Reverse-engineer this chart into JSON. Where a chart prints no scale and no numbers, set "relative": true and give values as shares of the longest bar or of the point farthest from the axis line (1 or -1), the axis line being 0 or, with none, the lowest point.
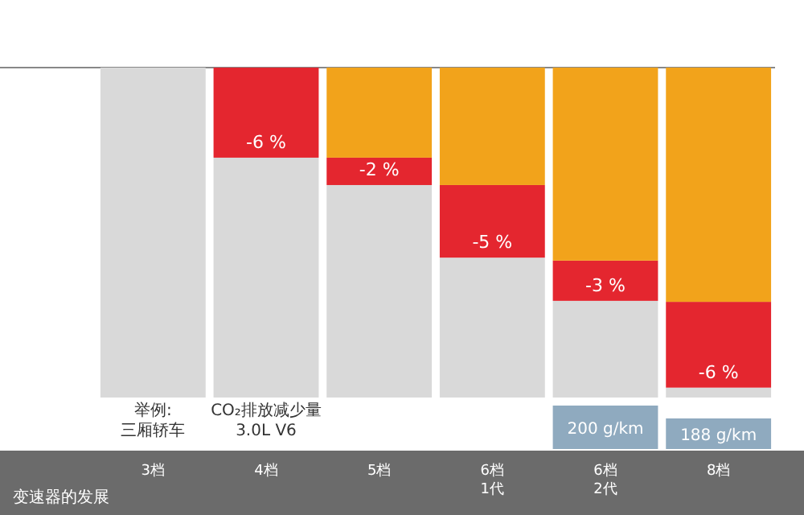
{
  "chart_data": {
    "type": "bar",
    "stacked": true,
    "relative": true,
    "categories": [
      "3档",
      "4档",
      "5档",
      "6档\n1代",
      "6档\n2代",
      "8档"
    ],
    "xlabel": "变速器的发展",
    "series": [
      {
        "color": "#d9d9d9",
        "values": [
          1,
          0.727,
          0.644,
          0.424,
          0.293,
          0.03
        ]
      },
      {
        "color": "#e4262f",
        "values": [
          null,
          0.273,
          0.083,
          0.22,
          0.122,
          0.26
        ]
      },
      {
        "color": "#f2a31b",
        "values": [
          null,
          null,
          0.273,
          0.356,
          0.585,
          0.71
        ]
      }
    ],
    "annotations": [
      "举例:\n三厢轿车",
      "CO₂排放减少量\n3.0L V6",
      "200 g/km",
      "188 g/km",
      "-6 %",
      "-2 %",
      "-5 %",
      "-3 %",
      "-6 %"
    ]
  }
}
